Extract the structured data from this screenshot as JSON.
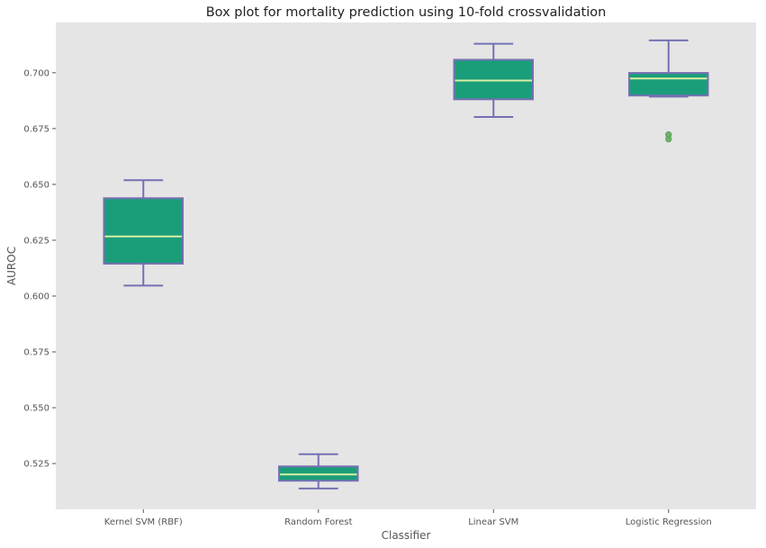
{
  "chart_data": {
    "type": "box",
    "title": "Box plot for mortality prediction using 10-fold crossvalidation",
    "xlabel": "Classifier",
    "ylabel": "AUROC",
    "ylim": [
      0.5045,
      0.7225
    ],
    "yticks": [
      0.525,
      0.55,
      0.575,
      0.6,
      0.625,
      0.65,
      0.675,
      0.7
    ],
    "ytick_labels": [
      "0.525",
      "0.550",
      "0.575",
      "0.600",
      "0.625",
      "0.650",
      "0.675",
      "0.700"
    ],
    "grid": false,
    "categories": [
      "Kernel SVM (RBF)",
      "Random Forest",
      "Linear SVM",
      "Logistic Regression"
    ],
    "boxes": [
      {
        "whisker_low": 0.6047,
        "q1": 0.6145,
        "median": 0.6267,
        "q3": 0.6438,
        "whisker_high": 0.6519,
        "outliers": []
      },
      {
        "whisker_low": 0.5138,
        "q1": 0.5173,
        "median": 0.5201,
        "q3": 0.5237,
        "whisker_high": 0.5292,
        "outliers": []
      },
      {
        "whisker_low": 0.6802,
        "q1": 0.6881,
        "median": 0.6965,
        "q3": 0.7058,
        "whisker_high": 0.713,
        "outliers": []
      },
      {
        "whisker_low": 0.6893,
        "q1": 0.6898,
        "median": 0.6974,
        "q3": 0.6999,
        "whisker_high": 0.7145,
        "outliers": [
          0.6723,
          0.6703
        ]
      }
    ],
    "colors": {
      "plot_background": "#e5e5e5",
      "box_fill": "#1a9e7a",
      "box_edge": "#7570b3",
      "median": "#d9f0a3",
      "whisker": "#7570b3",
      "outlier": "#5fa85f",
      "text": "#555555",
      "title_text": "#222222"
    }
  }
}
